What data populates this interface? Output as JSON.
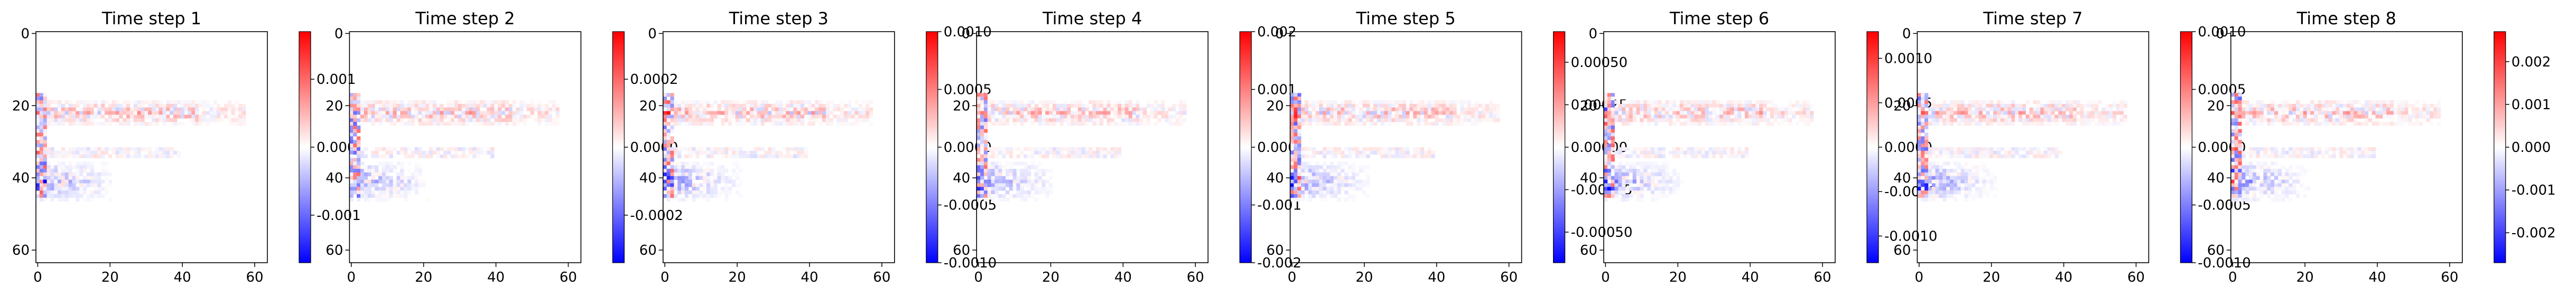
{
  "figure": {
    "background": "#ffffff",
    "colormap": {
      "name": "bwr",
      "low": "#0000ff",
      "mid": "#ffffff",
      "high": "#ff0000"
    }
  },
  "chart_data": [
    {
      "type": "heatmap",
      "title": "Time step 1",
      "xticks": [
        "0",
        "20",
        "40",
        "60"
      ],
      "yticks": [
        "0",
        "20",
        "40",
        "60"
      ],
      "grid_size": 64,
      "xlim": [
        0,
        63
      ],
      "ylim": [
        63,
        0
      ],
      "colorbar": {
        "ticks": [
          "0.001",
          "0.000",
          "-0.001"
        ],
        "tick_values": [
          0.001,
          0.0,
          -0.001
        ],
        "range": [
          -0.0017,
          0.0017
        ]
      }
    },
    {
      "type": "heatmap",
      "title": "Time step 2",
      "xticks": [
        "0",
        "20",
        "40",
        "60"
      ],
      "yticks": [
        "0",
        "20",
        "40",
        "60"
      ],
      "grid_size": 64,
      "xlim": [
        0,
        63
      ],
      "ylim": [
        63,
        0
      ],
      "colorbar": {
        "ticks": [
          "0.0002",
          "0.0000",
          "-0.0002"
        ],
        "tick_values": [
          0.0002,
          0.0,
          -0.0002
        ],
        "range": [
          -0.00034,
          0.00034
        ]
      }
    },
    {
      "type": "heatmap",
      "title": "Time step 3",
      "xticks": [
        "0",
        "20",
        "40",
        "60"
      ],
      "yticks": [
        "0",
        "20",
        "40",
        "60"
      ],
      "grid_size": 64,
      "xlim": [
        0,
        63
      ],
      "ylim": [
        63,
        0
      ],
      "colorbar": {
        "ticks": [
          "0.0010",
          "0.0005",
          "0.0000",
          "-0.0005",
          "-0.0010"
        ],
        "tick_values": [
          0.001,
          0.0005,
          0.0,
          -0.0005,
          -0.001
        ],
        "range": [
          -0.001,
          0.001
        ]
      }
    },
    {
      "type": "heatmap",
      "title": "Time step 4",
      "xticks": [
        "0",
        "20",
        "40",
        "60"
      ],
      "yticks": [
        "0",
        "20",
        "40",
        "60"
      ],
      "grid_size": 64,
      "xlim": [
        0,
        63
      ],
      "ylim": [
        63,
        0
      ],
      "colorbar": {
        "ticks": [
          "0.002",
          "0.001",
          "0.000",
          "-0.001",
          "-0.002"
        ],
        "tick_values": [
          0.002,
          0.001,
          0.0,
          -0.001,
          -0.002
        ],
        "range": [
          -0.002,
          0.002
        ]
      }
    },
    {
      "type": "heatmap",
      "title": "Time step 5",
      "xticks": [
        "0",
        "20",
        "40",
        "60"
      ],
      "yticks": [
        "0",
        "20",
        "40",
        "60"
      ],
      "grid_size": 64,
      "xlim": [
        0,
        63
      ],
      "ylim": [
        63,
        0
      ],
      "colorbar": {
        "ticks": [
          "0.00050",
          "0.00025",
          "0.00000",
          "-0.00025",
          "-0.00050"
        ],
        "tick_values": [
          0.0005,
          0.00025,
          0.0,
          -0.00025,
          -0.0005
        ],
        "range": [
          -0.00068,
          0.00068
        ]
      }
    },
    {
      "type": "heatmap",
      "title": "Time step 6",
      "xticks": [
        "0",
        "20",
        "40",
        "60"
      ],
      "yticks": [
        "0",
        "20",
        "40",
        "60"
      ],
      "grid_size": 64,
      "xlim": [
        0,
        63
      ],
      "ylim": [
        63,
        0
      ],
      "colorbar": {
        "ticks": [
          "0.0010",
          "0.0005",
          "0.0000",
          "-0.0005",
          "-0.0010"
        ],
        "tick_values": [
          0.001,
          0.0005,
          0.0,
          -0.0005,
          -0.001
        ],
        "range": [
          -0.0013,
          0.0013
        ]
      }
    },
    {
      "type": "heatmap",
      "title": "Time step 7",
      "xticks": [
        "0",
        "20",
        "40",
        "60"
      ],
      "yticks": [
        "0",
        "20",
        "40",
        "60"
      ],
      "grid_size": 64,
      "xlim": [
        0,
        63
      ],
      "ylim": [
        63,
        0
      ],
      "colorbar": {
        "ticks": [
          "0.0010",
          "0.0005",
          "0.0000",
          "-0.0005",
          "-0.0010"
        ],
        "tick_values": [
          0.001,
          0.0005,
          0.0,
          -0.0005,
          -0.001
        ],
        "range": [
          -0.001,
          0.001
        ]
      }
    },
    {
      "type": "heatmap",
      "title": "Time step 8",
      "xticks": [
        "0",
        "20",
        "40",
        "60"
      ],
      "yticks": [
        "0",
        "20",
        "40",
        "60"
      ],
      "grid_size": 64,
      "xlim": [
        0,
        63
      ],
      "ylim": [
        63,
        0
      ],
      "colorbar": {
        "ticks": [
          "0.002",
          "0.001",
          "0.000",
          "-0.001",
          "-0.002"
        ],
        "tick_values": [
          0.002,
          0.001,
          0.0,
          -0.001,
          -0.002
        ],
        "range": [
          -0.0027,
          0.0027
        ]
      }
    }
  ]
}
